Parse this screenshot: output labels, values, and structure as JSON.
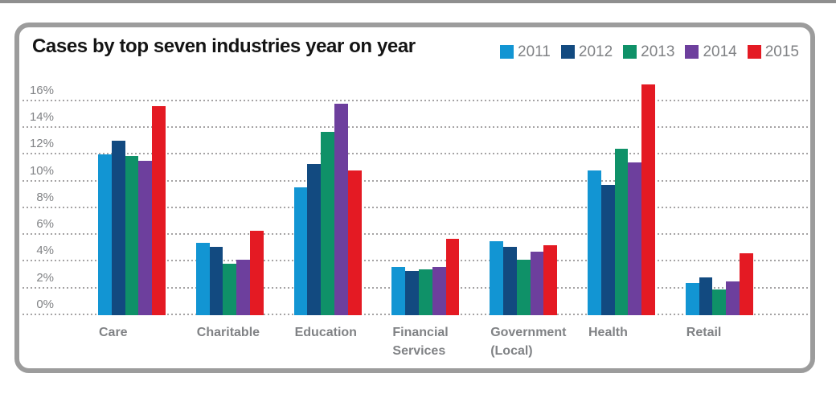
{
  "chart_data": {
    "type": "bar",
    "title": "Cases by top seven industries year on year",
    "categories": [
      "Care",
      "Charitable",
      "Education",
      "Financial Services",
      "Government (Local)",
      "Health",
      "Retail"
    ],
    "series": [
      {
        "name": "2011",
        "color": "#1295d3",
        "values": [
          11.9,
          5.3,
          9.4,
          3.5,
          5.4,
          10.7,
          2.3
        ]
      },
      {
        "name": "2012",
        "color": "#124a80",
        "values": [
          12.9,
          5.0,
          11.2,
          3.2,
          5.0,
          9.6,
          2.7
        ]
      },
      {
        "name": "2013",
        "color": "#0f9168",
        "values": [
          11.8,
          3.7,
          13.6,
          3.3,
          4.0,
          12.3,
          1.8
        ]
      },
      {
        "name": "2014",
        "color": "#6d3f9d",
        "values": [
          11.4,
          4.0,
          15.7,
          3.5,
          4.6,
          11.3,
          2.4
        ]
      },
      {
        "name": "2015",
        "color": "#e41a23",
        "values": [
          15.5,
          6.2,
          10.7,
          5.6,
          5.1,
          17.1,
          4.5
        ]
      }
    ],
    "ylabel": "",
    "xlabel": "",
    "ylim": [
      0,
      16
    ],
    "ytick_labels": [
      "0%",
      "2%",
      "4%",
      "6%",
      "8%",
      "10%",
      "12%",
      "14%",
      "16%"
    ],
    "grid": "horizontal-dotted",
    "legend_position": "top-right",
    "colors_note": {
      "text_gray": "#808285",
      "panel_border_gray": "#9c9c9c",
      "gridline_gray": "#a5a3a4",
      "title_black": "#141414"
    }
  }
}
